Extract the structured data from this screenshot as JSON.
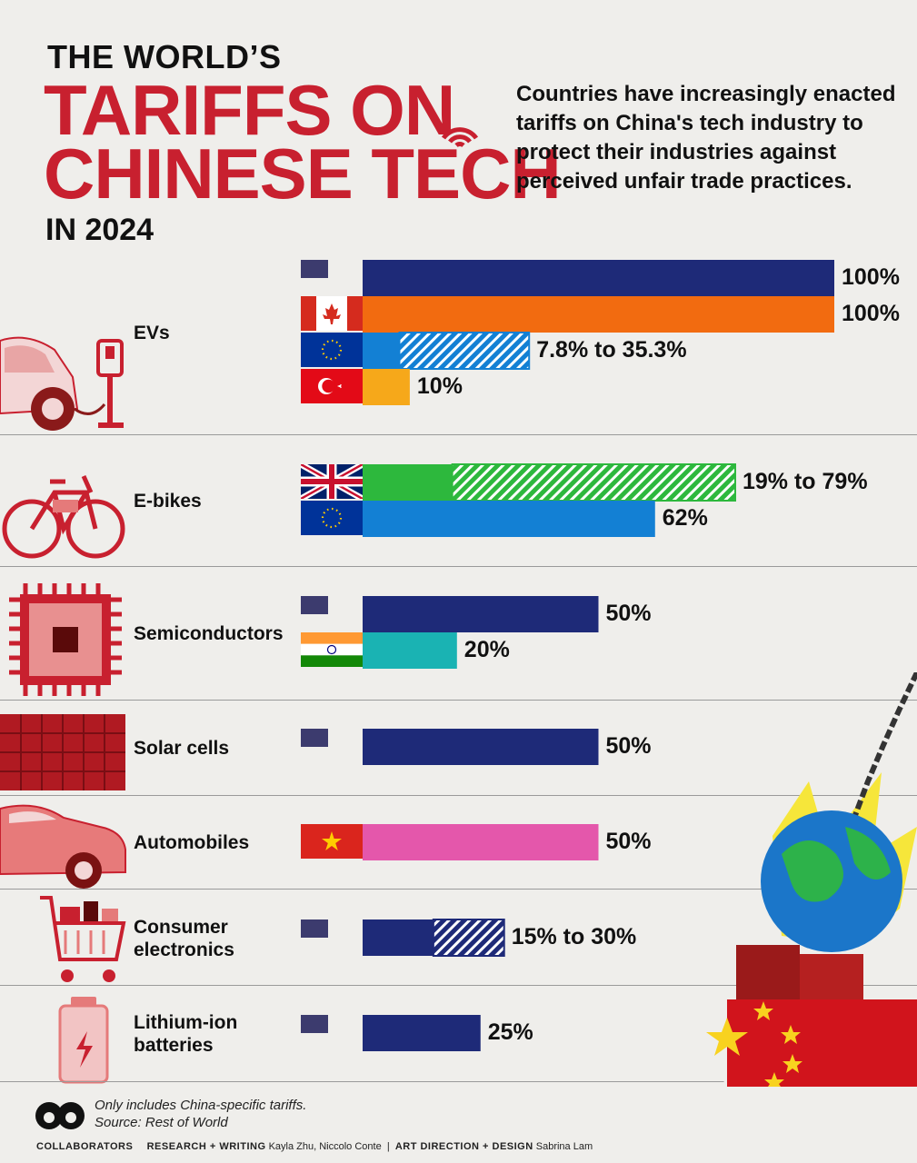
{
  "header": {
    "title_line1": "THE WORLD’S",
    "title_line2": "TARIFFS ON",
    "title_line3": "CHINESE TECH",
    "title_line4": "IN 2024",
    "description": "Countries have increasingly enacted tariffs on China's tech industry to protect their industries against perceived unfair trade practices."
  },
  "colors": {
    "us": "#1e2a78",
    "canada": "#f26b10",
    "eu": "#1380d4",
    "turkey": "#f6a81a",
    "uk": "#2db83d",
    "india": "#1ab3b3",
    "vietnam": "#e457ab",
    "title_red": "#c8202f"
  },
  "chart_data": {
    "type": "bar",
    "orientation": "horizontal",
    "xlim": [
      0,
      100
    ],
    "groups": [
      {
        "category": "EVs",
        "bars": [
          {
            "country": "United States",
            "flag": "us",
            "value": 100,
            "label": "100%"
          },
          {
            "country": "Canada",
            "flag": "ca",
            "value": 100,
            "label": "100%"
          },
          {
            "country": "European Union",
            "flag": "eu",
            "value": 7.8,
            "value_max": 35.3,
            "label": "7.8% to 35.3%"
          },
          {
            "country": "Turkey",
            "flag": "tr",
            "value": 10,
            "label": "10%"
          }
        ]
      },
      {
        "category": "E-bikes",
        "bars": [
          {
            "country": "United Kingdom",
            "flag": "uk",
            "value": 19,
            "value_max": 79,
            "label": "19% to 79%"
          },
          {
            "country": "European Union",
            "flag": "eu",
            "value": 62,
            "label": "62%"
          }
        ]
      },
      {
        "category": "Semiconductors",
        "bars": [
          {
            "country": "United States",
            "flag": "us",
            "value": 50,
            "label": "50%"
          },
          {
            "country": "India",
            "flag": "in",
            "value": 20,
            "label": "20%"
          }
        ]
      },
      {
        "category": "Solar cells",
        "bars": [
          {
            "country": "United States",
            "flag": "us",
            "value": 50,
            "label": "50%"
          }
        ]
      },
      {
        "category": "Automobiles",
        "bars": [
          {
            "country": "Vietnam",
            "flag": "vn",
            "value": 50,
            "label": "50%"
          }
        ]
      },
      {
        "category": "Consumer electronics",
        "bars": [
          {
            "country": "United States",
            "flag": "us",
            "value": 15,
            "value_max": 30,
            "label": "15% to 30%"
          }
        ]
      },
      {
        "category": "Lithium-ion batteries",
        "bars": [
          {
            "country": "United States",
            "flag": "us",
            "value": 25,
            "label": "25%"
          }
        ]
      }
    ]
  },
  "categories": {
    "evs": "EVs",
    "ebikes": "E-bikes",
    "semis": "Semiconductors",
    "solar": "Solar cells",
    "autos": "Automobiles",
    "consumer_1": "Consumer",
    "consumer_2": "electronics",
    "lithium_1": "Lithium-ion",
    "lithium_2": "batteries"
  },
  "footer": {
    "note": "Only includes China-specific tariffs.",
    "source": "Source: Rest of World",
    "brand": "COLLABORATORS",
    "research_label": "RESEARCH + WRITING",
    "research_names": "Kayla Zhu, Niccolo Conte",
    "design_label": "ART DIRECTION + DESIGN",
    "design_names": "Sabrina Lam"
  }
}
